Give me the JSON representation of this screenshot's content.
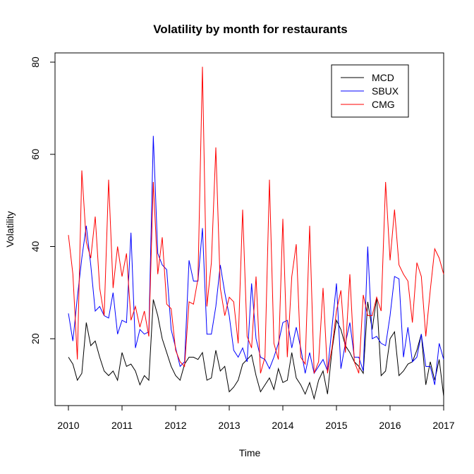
{
  "chart_data": {
    "type": "line",
    "title": "Volatility by month for restaurants",
    "xlabel": "Time",
    "ylabel": "Volatility",
    "xlim": [
      2009.75,
      2017.0
    ],
    "ylim": [
      5.5,
      82
    ],
    "x_ticks": [
      2010,
      2011,
      2012,
      2013,
      2014,
      2015,
      2016,
      2017
    ],
    "x_tick_labels": [
      "2010",
      "2011",
      "2012",
      "2013",
      "2014",
      "2015",
      "2016",
      "2017"
    ],
    "y_ticks": [
      20,
      40,
      60,
      80
    ],
    "y_tick_labels": [
      "20",
      "40",
      "60",
      "80"
    ],
    "grid": false,
    "legend_position": "top-right",
    "x_start": 2010.0,
    "x_step": 0.083333,
    "series": [
      {
        "name": "MCD",
        "color": "#000000",
        "values": [
          16,
          14.5,
          11,
          12.5,
          23.5,
          18.5,
          19.5,
          16,
          13,
          12,
          13,
          11,
          17,
          14,
          14.5,
          13,
          10,
          12,
          11,
          28.5,
          25,
          20,
          17,
          14,
          12,
          11,
          14.5,
          16,
          16,
          15.5,
          17,
          11,
          11.5,
          17.5,
          13,
          14,
          8.5,
          9.5,
          11,
          14.5,
          15.5,
          16.5,
          12,
          8.5,
          10,
          11.5,
          9,
          13.5,
          10.5,
          11,
          17,
          11.5,
          10,
          8,
          10.5,
          7,
          11,
          13,
          8,
          17.5,
          24,
          22,
          18.5,
          17,
          15,
          14,
          12.5,
          28,
          22,
          29,
          12,
          13,
          20,
          21.5,
          12,
          13,
          14.5,
          15,
          17.5,
          21,
          10,
          15,
          11,
          15.5,
          7.5
        ]
      },
      {
        "name": "SBUX",
        "color": "#0000ff",
        "values": [
          25.5,
          19.5,
          29,
          37.5,
          44.5,
          36,
          26,
          27,
          25,
          24.5,
          30,
          21,
          24,
          23.5,
          43,
          18,
          22,
          21,
          21.5,
          64,
          38.5,
          36,
          35,
          22,
          18,
          14,
          15,
          37,
          32.5,
          32.5,
          44,
          21,
          21,
          27,
          36,
          30,
          25,
          17.5,
          16,
          18,
          15,
          32,
          20,
          16,
          15.5,
          13.5,
          16,
          19,
          23.5,
          24,
          18,
          22.5,
          18,
          12.5,
          17,
          12.5,
          14,
          15.5,
          13,
          22.5,
          32,
          13.5,
          19,
          23.5,
          16,
          16,
          13,
          40,
          20,
          20.5,
          19,
          18.5,
          25,
          33.5,
          33,
          16,
          22.5,
          15,
          16,
          21,
          14,
          14,
          10,
          19,
          15.5
        ]
      },
      {
        "name": "CMG",
        "color": "#ff0000",
        "values": [
          42.5,
          34,
          15.5,
          56.5,
          41,
          37.5,
          46.5,
          31,
          25,
          54.5,
          31,
          40,
          33.5,
          38.5,
          24,
          27,
          22.5,
          26,
          20.5,
          54,
          34,
          42,
          27.5,
          26.5,
          17.5,
          15,
          14,
          28,
          27.5,
          33,
          79,
          27,
          36.5,
          61.5,
          31,
          25,
          29,
          28,
          19,
          48,
          20.5,
          18,
          33.5,
          12.5,
          16,
          54.5,
          19,
          15.5,
          46,
          16,
          33.5,
          40.5,
          16,
          14.5,
          44.5,
          12.5,
          15,
          31,
          12.5,
          18,
          26,
          30.5,
          17,
          34,
          15,
          12.5,
          29.5,
          25,
          25,
          29,
          26,
          54,
          37,
          48,
          36,
          34,
          32.5,
          23.5,
          36.5,
          33.5,
          20.5,
          30.5,
          39.5,
          37.5,
          34
        ]
      }
    ]
  }
}
